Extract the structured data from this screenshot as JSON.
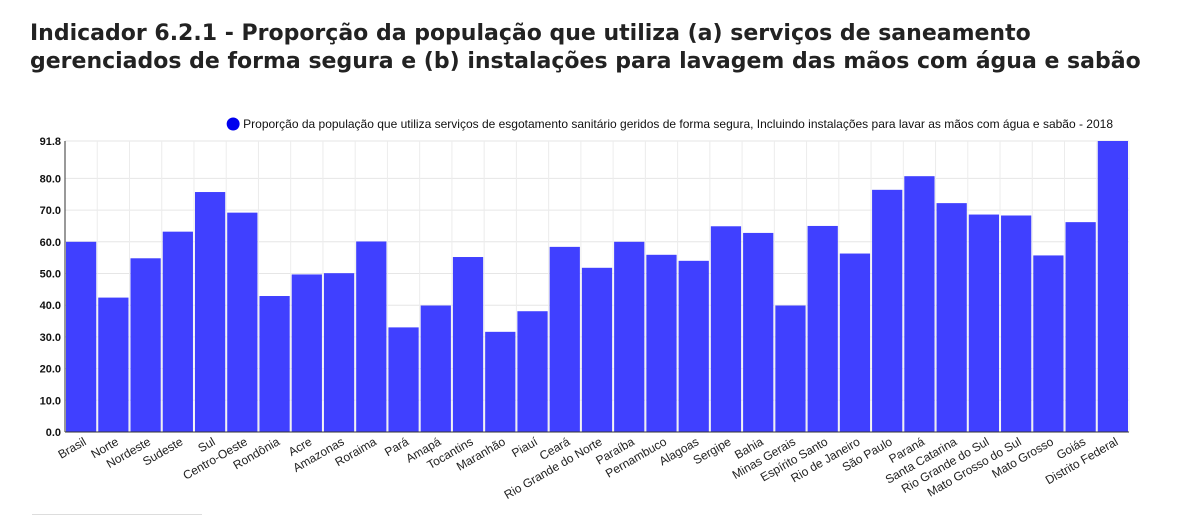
{
  "page": {
    "title": "Indicador 6.2.1 - Proporção da população que utiliza (a) serviços de saneamento gerenciados de forma segura e (b) instalações para lavagem das mãos com água e sabão"
  },
  "chart_data": {
    "type": "bar",
    "title": "",
    "xlabel": "",
    "ylabel": "",
    "ylim": [
      0,
      91.8
    ],
    "yticks": [
      "0.0",
      "10.0",
      "20.0",
      "30.0",
      "40.0",
      "50.0",
      "60.0",
      "70.0",
      "80.0",
      "91.8"
    ],
    "grid": true,
    "legend_position": "top-right",
    "bar_color": "#3c3cff",
    "categories": [
      "Brasil",
      "Norte",
      "Nordeste",
      "Sudeste",
      "Sul",
      "Centro-Oeste",
      "Rondônia",
      "Acre",
      "Amazonas",
      "Roraima",
      "Pará",
      "Amapá",
      "Tocantins",
      "Maranhão",
      "Piauí",
      "Ceará",
      "Rio Grande do Norte",
      "Paraíba",
      "Pernambuco",
      "Alagoas",
      "Sergipe",
      "Bahia",
      "Minas Gerais",
      "Espírito Santo",
      "Rio de Janeiro",
      "São Paulo",
      "Paraná",
      "Santa Catarina",
      "Rio Grande do Sul",
      "Mato Grosso do Sul",
      "Mato Grosso",
      "Goiás",
      "Distrito Federal"
    ],
    "series": [
      {
        "name": "Proporção da população que utiliza serviços de esgotamento sanitário geridos de forma segura, Incluindo instalações para lavar as mãos com água e sabão - 2018",
        "values": [
          60.0,
          42.4,
          54.8,
          63.2,
          75.7,
          69.2,
          42.9,
          49.7,
          50.1,
          60.1,
          33.0,
          39.9,
          55.2,
          31.6,
          38.1,
          58.4,
          51.8,
          60.0,
          55.9,
          54.0,
          64.9,
          62.8,
          39.9,
          65.0,
          56.3,
          76.4,
          80.7,
          72.2,
          68.6,
          68.3,
          55.7,
          66.2,
          91.8
        ]
      }
    ]
  }
}
